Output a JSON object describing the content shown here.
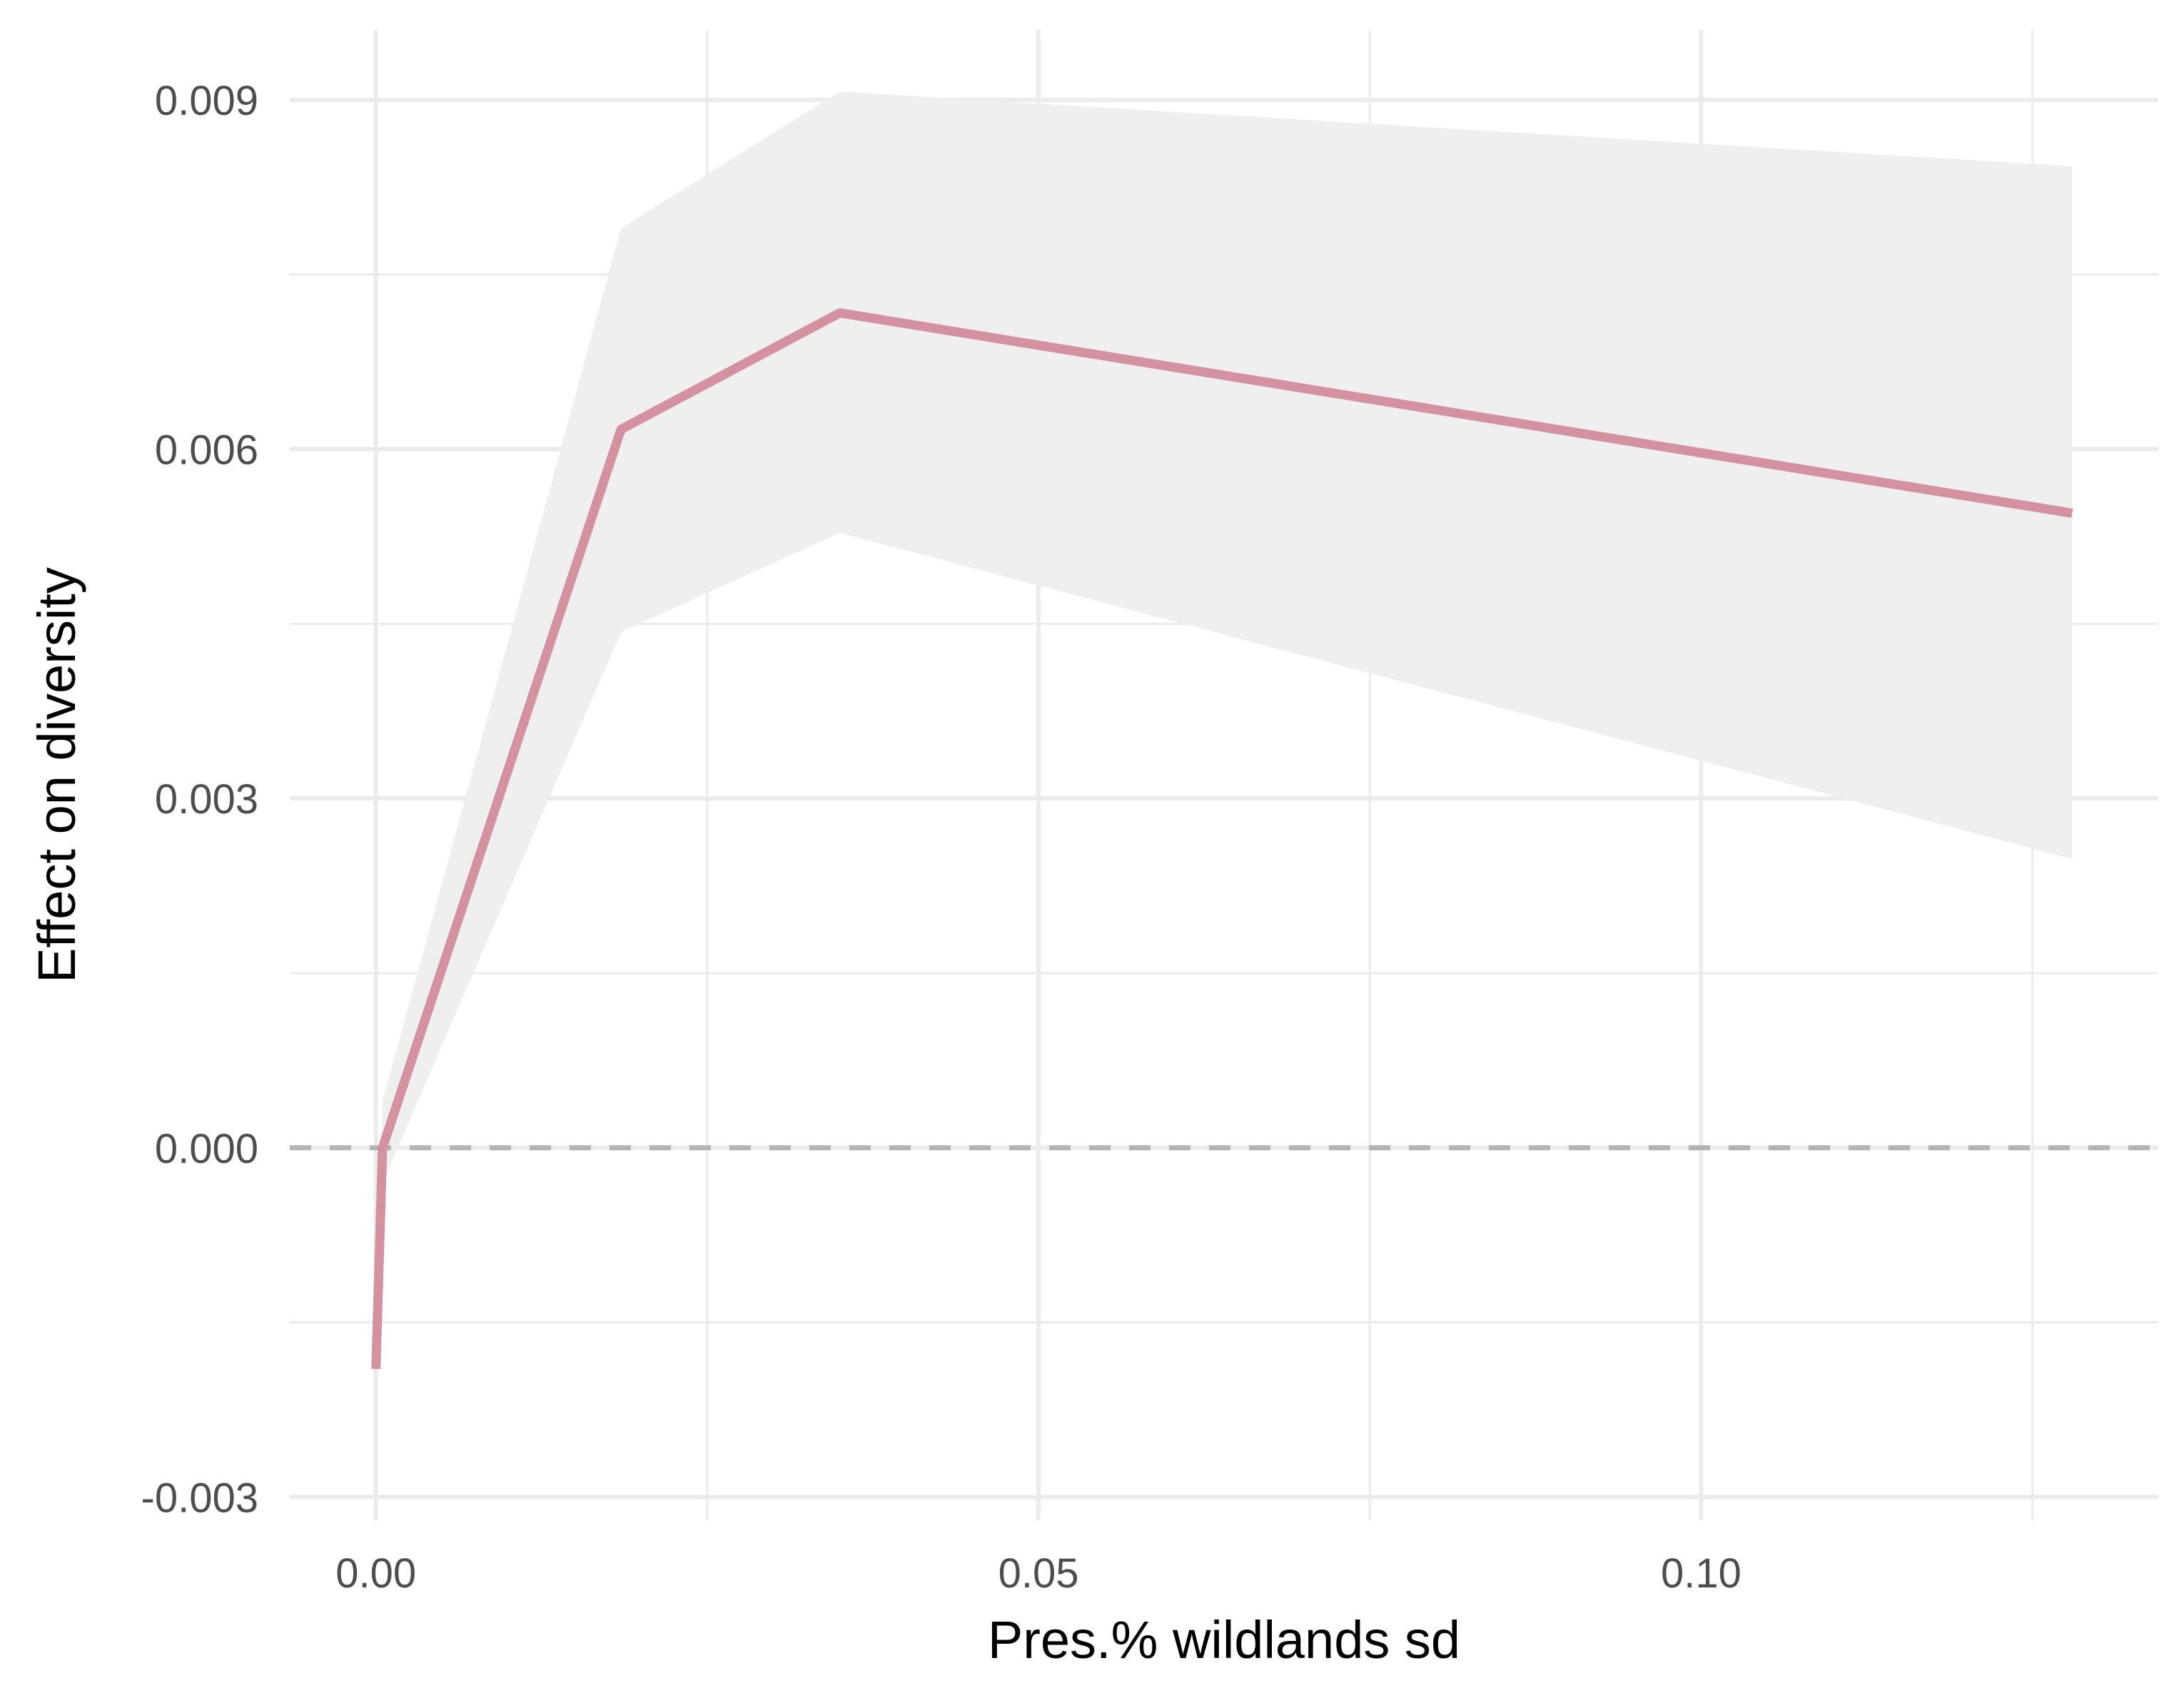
{
  "chart_data": {
    "type": "line",
    "title": "",
    "xlabel": "Pres.% wildlands sd",
    "ylabel": "Effect on diversity",
    "xlim": [
      -0.0065,
      0.1345
    ],
    "ylim": [
      -0.0032,
      0.0096
    ],
    "x_major_ticks": [
      0.0,
      0.05,
      0.1
    ],
    "x_tick_labels": [
      "0.00",
      "0.05",
      "0.10"
    ],
    "x_minor_ticks": [
      0.025,
      0.075,
      0.125
    ],
    "y_major_ticks": [
      -0.003,
      0.0,
      0.003,
      0.006,
      0.009
    ],
    "y_tick_labels": [
      "-0.003",
      "0.000",
      "0.003",
      "0.006",
      "0.009"
    ],
    "y_minor_ticks": [
      -0.0015,
      0.0015,
      0.0045,
      0.0075
    ],
    "reference_line": {
      "y": 0.0,
      "style": "dashed",
      "color": "#b3b3b3"
    },
    "grid": true,
    "legend": "none",
    "series": [
      {
        "x": [
          0.0,
          0.0005,
          0.0185,
          0.035,
          0.128
        ],
        "y": [
          -0.0019,
          0.0,
          0.00617,
          0.00717,
          0.00545
        ],
        "ymin": [
          -0.0021,
          -0.0003,
          0.00443,
          0.00528,
          0.00248
        ],
        "ymax": [
          -0.0017,
          0.0004,
          0.0079,
          0.00907,
          0.00843
        ],
        "line_color": "#d4919f",
        "ribbon_color": "#efefef"
      }
    ]
  }
}
